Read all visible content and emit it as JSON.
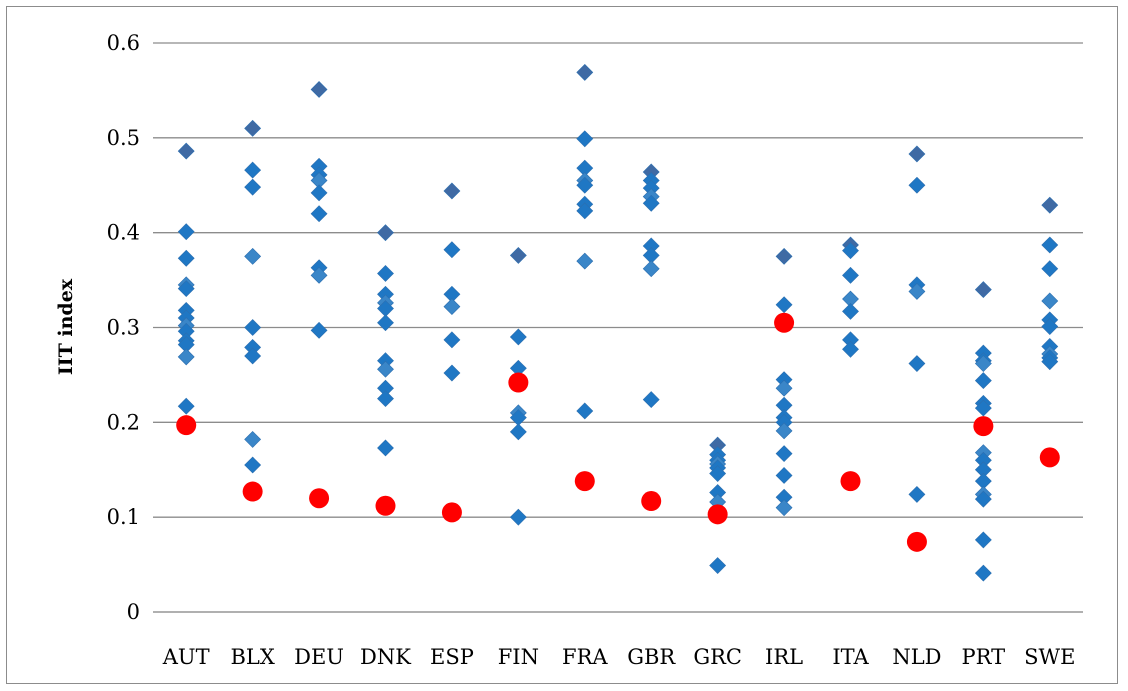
{
  "chart_data": {
    "type": "scatter",
    "title": "",
    "xlabel": "",
    "ylabel": "IIT index",
    "ylim": [
      0,
      0.6
    ],
    "yticks": [
      "0",
      "0.1",
      "0.2",
      "0.3",
      "0.4",
      "0.5",
      "0.6"
    ],
    "grid": true,
    "categories": [
      "AUT",
      "BLX",
      "DEU",
      "DNK",
      "ESP",
      "FIN",
      "FRA",
      "GBR",
      "GRC",
      "IRL",
      "ITA",
      "NLD",
      "PRT",
      "SWE"
    ],
    "series": [
      {
        "marker": "diamond",
        "color": "#1f77c4",
        "values": [
          [
            0.486,
            0.401,
            0.373,
            0.345,
            0.341,
            0.318,
            0.31,
            0.302,
            0.296,
            0.286,
            0.282,
            0.269,
            0.217
          ],
          [
            0.51,
            0.466,
            0.448,
            0.375,
            0.3,
            0.279,
            0.27,
            0.182,
            0.155
          ],
          [
            0.551,
            0.47,
            0.461,
            0.455,
            0.442,
            0.42,
            0.363,
            0.355,
            0.297
          ],
          [
            0.4,
            0.357,
            0.335,
            0.326,
            0.32,
            0.305,
            0.265,
            0.256,
            0.236,
            0.225,
            0.173
          ],
          [
            0.444,
            0.382,
            0.335,
            0.322,
            0.287,
            0.252
          ],
          [
            0.376,
            0.29,
            0.257,
            0.21,
            0.205,
            0.19,
            0.1
          ],
          [
            0.569,
            0.499,
            0.468,
            0.455,
            0.45,
            0.43,
            0.423,
            0.37,
            0.212
          ],
          [
            0.464,
            0.455,
            0.447,
            0.438,
            0.431,
            0.386,
            0.376,
            0.362,
            0.224
          ],
          [
            0.176,
            0.166,
            0.16,
            0.156,
            0.152,
            0.146,
            0.126,
            0.116,
            0.049
          ],
          [
            0.375,
            0.324,
            0.245,
            0.236,
            0.218,
            0.205,
            0.2,
            0.191,
            0.167,
            0.144,
            0.121,
            0.11
          ],
          [
            0.387,
            0.381,
            0.355,
            0.33,
            0.317,
            0.287,
            0.277
          ],
          [
            0.483,
            0.45,
            0.345,
            0.338,
            0.262,
            0.124
          ],
          [
            0.34,
            0.273,
            0.265,
            0.262,
            0.244,
            0.22,
            0.215,
            0.168,
            0.16,
            0.15,
            0.138,
            0.124,
            0.119,
            0.076,
            0.041
          ],
          [
            0.429,
            0.387,
            0.362,
            0.328,
            0.308,
            0.301,
            0.28,
            0.272,
            0.268,
            0.264
          ]
        ]
      },
      {
        "marker": "circle",
        "color": "#ff0000",
        "values": [
          0.197,
          0.127,
          0.12,
          0.112,
          0.105,
          0.242,
          0.138,
          0.117,
          0.103,
          0.305,
          0.138,
          0.074,
          0.196,
          0.163
        ]
      }
    ]
  }
}
